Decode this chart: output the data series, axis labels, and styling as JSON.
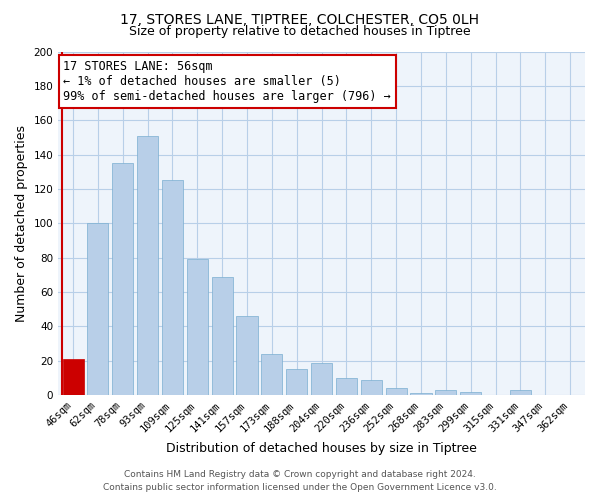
{
  "title": "17, STORES LANE, TIPTREE, COLCHESTER, CO5 0LH",
  "subtitle": "Size of property relative to detached houses in Tiptree",
  "xlabel": "Distribution of detached houses by size in Tiptree",
  "ylabel": "Number of detached properties",
  "bar_labels": [
    "46sqm",
    "62sqm",
    "78sqm",
    "93sqm",
    "109sqm",
    "125sqm",
    "141sqm",
    "157sqm",
    "173sqm",
    "188sqm",
    "204sqm",
    "220sqm",
    "236sqm",
    "252sqm",
    "268sqm",
    "283sqm",
    "299sqm",
    "315sqm",
    "331sqm",
    "347sqm",
    "362sqm"
  ],
  "bar_values": [
    21,
    100,
    135,
    151,
    125,
    79,
    69,
    46,
    24,
    15,
    19,
    10,
    9,
    4,
    1,
    3,
    2,
    0,
    3,
    0,
    0
  ],
  "bar_color": "#b8cfe8",
  "bar_edge_color": "#7aaed0",
  "highlight_bar_index": 0,
  "highlight_color": "#cc0000",
  "vline_color": "#cc0000",
  "annotation_line1": "17 STORES LANE: 56sqm",
  "annotation_line2": "← 1% of detached houses are smaller (5)",
  "annotation_line3": "99% of semi-detached houses are larger (796) →",
  "annotation_box_color": "#ffffff",
  "annotation_box_edge": "#cc0000",
  "ylim": [
    0,
    200
  ],
  "yticks": [
    0,
    20,
    40,
    60,
    80,
    100,
    120,
    140,
    160,
    180,
    200
  ],
  "footer_line1": "Contains HM Land Registry data © Crown copyright and database right 2024.",
  "footer_line2": "Contains public sector information licensed under the Open Government Licence v3.0.",
  "bg_color": "#ffffff",
  "plot_bg_color": "#eef4fb",
  "grid_color": "#b8cfe8",
  "title_fontsize": 10,
  "subtitle_fontsize": 9,
  "axis_label_fontsize": 9,
  "tick_fontsize": 7.5,
  "annotation_fontsize": 8.5,
  "footer_fontsize": 6.5
}
